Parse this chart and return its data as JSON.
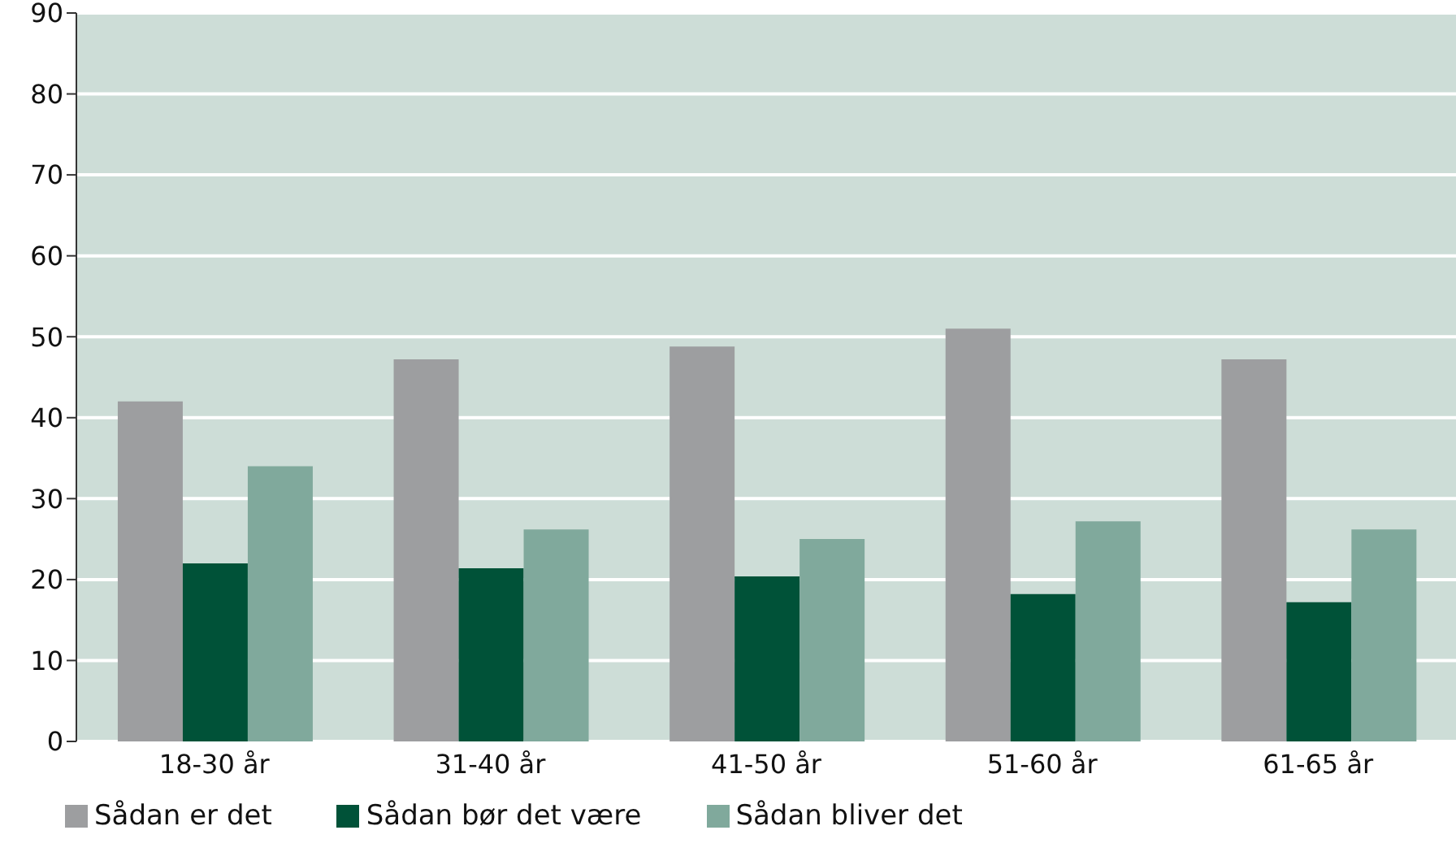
{
  "chart_data": {
    "type": "bar",
    "categories": [
      "18-30 år",
      "31-40 år",
      "41-50 år",
      "51-60 år",
      "61-65 år"
    ],
    "series": [
      {
        "name": "Sådan er det",
        "color": "#9d9ea0",
        "values": [
          42,
          47.2,
          48.8,
          51,
          47.2
        ]
      },
      {
        "name": "Sådan bør det være",
        "color": "#005238",
        "values": [
          22,
          21.4,
          20.4,
          18.2,
          17.2
        ]
      },
      {
        "name": "Sådan bliver det",
        "color": "#80a99c",
        "values": [
          34,
          26.2,
          25,
          27.2,
          26.2
        ]
      }
    ],
    "ylim": [
      0,
      90
    ],
    "yticks": [
      0,
      10,
      20,
      30,
      40,
      50,
      60,
      70,
      80,
      90
    ],
    "grid": "y",
    "legend": "bottom"
  }
}
